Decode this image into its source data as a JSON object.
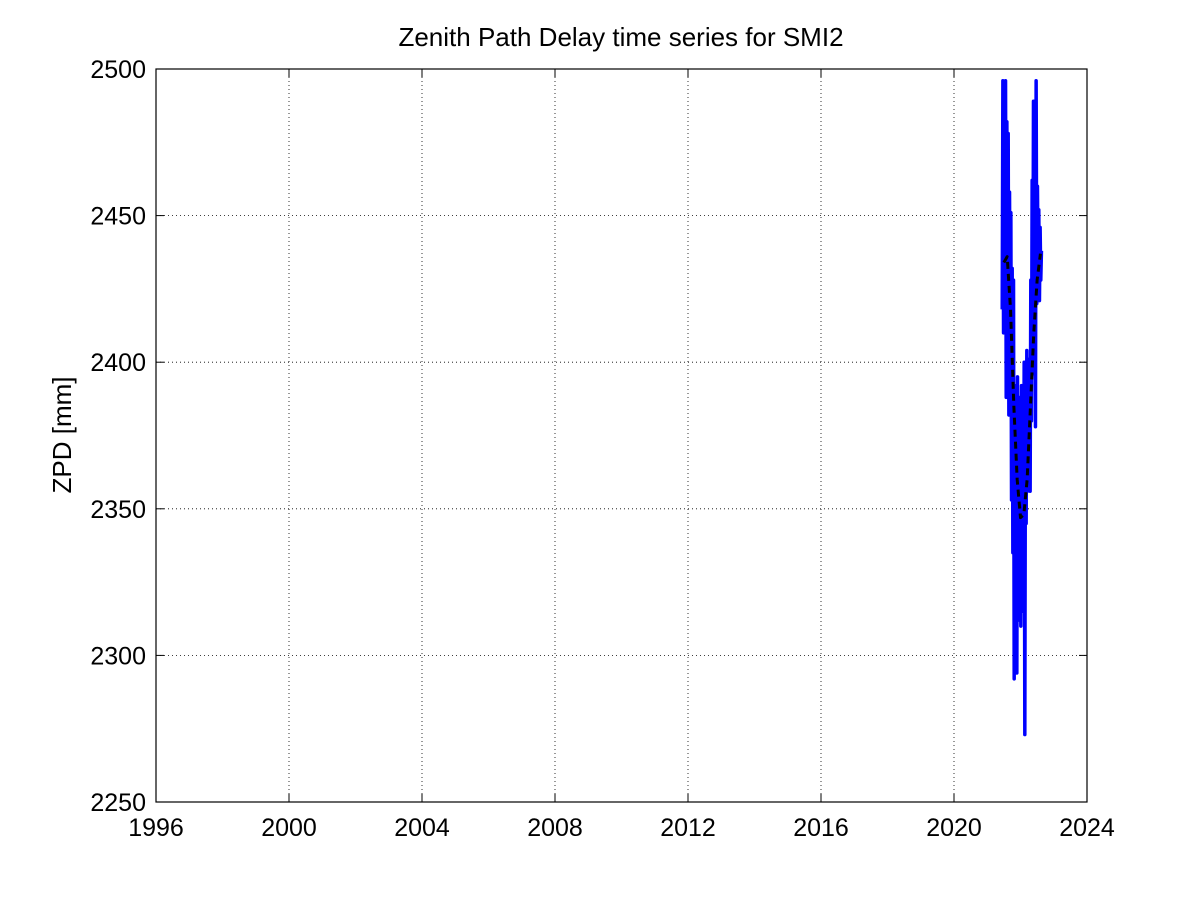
{
  "chart_data": {
    "type": "line",
    "title": "Zenith Path Delay time series for SMI2",
    "xlabel": "",
    "ylabel": "ZPD [mm]",
    "xlim": [
      1996,
      2024
    ],
    "ylim": [
      2250,
      2500
    ],
    "x_ticks": [
      1996,
      2000,
      2004,
      2008,
      2012,
      2016,
      2020,
      2024
    ],
    "y_ticks": [
      2250,
      2300,
      2350,
      2400,
      2450,
      2500
    ],
    "grid": true,
    "grid_style": "dotted",
    "legend": "none",
    "series": [
      {
        "style": "solid",
        "color": "#0000ff",
        "x": [
          2021.45,
          2021.47,
          2021.49,
          2021.51,
          2021.53,
          2021.55,
          2021.57,
          2021.59,
          2021.61,
          2021.63,
          2021.65,
          2021.67,
          2021.69,
          2021.71,
          2021.73,
          2021.75,
          2021.77,
          2021.79,
          2021.81,
          2021.83,
          2021.85,
          2021.87,
          2021.89,
          2021.91,
          2021.93,
          2021.95,
          2021.97,
          2021.99,
          2022.01,
          2022.03,
          2022.05,
          2022.07,
          2022.09,
          2022.11,
          2022.13,
          2022.15,
          2022.17,
          2022.19,
          2022.21,
          2022.23,
          2022.25,
          2022.27,
          2022.29,
          2022.31,
          2022.33,
          2022.35,
          2022.37,
          2022.39,
          2022.41,
          2022.43,
          2022.45,
          2022.47,
          2022.49,
          2022.51,
          2022.53,
          2022.55,
          2022.57,
          2022.59,
          2022.61,
          2022.63
        ],
        "y": [
          2418,
          2496,
          2410,
          2472,
          2430,
          2496,
          2388,
          2482,
          2405,
          2478,
          2382,
          2458,
          2398,
          2451,
          2353,
          2432,
          2335,
          2428,
          2292,
          2385,
          2340,
          2392,
          2294,
          2395,
          2312,
          2388,
          2330,
          2380,
          2310,
          2392,
          2328,
          2370,
          2315,
          2400,
          2273,
          2392,
          2345,
          2404,
          2356,
          2380,
          2366,
          2401,
          2356,
          2428,
          2380,
          2462,
          2396,
          2489,
          2405,
          2472,
          2378,
          2496,
          2420,
          2460,
          2430,
          2452,
          2421,
          2446,
          2428,
          2438
        ]
      },
      {
        "style": "dashed",
        "color": "#000000",
        "x": [
          2021.5,
          2021.6,
          2021.7,
          2021.8,
          2021.9,
          2022.0,
          2022.1,
          2022.2,
          2022.3,
          2022.4,
          2022.5,
          2022.6
        ],
        "y": [
          2434,
          2436,
          2418,
          2385,
          2360,
          2347,
          2348,
          2360,
          2385,
          2410,
          2428,
          2437
        ]
      }
    ]
  }
}
